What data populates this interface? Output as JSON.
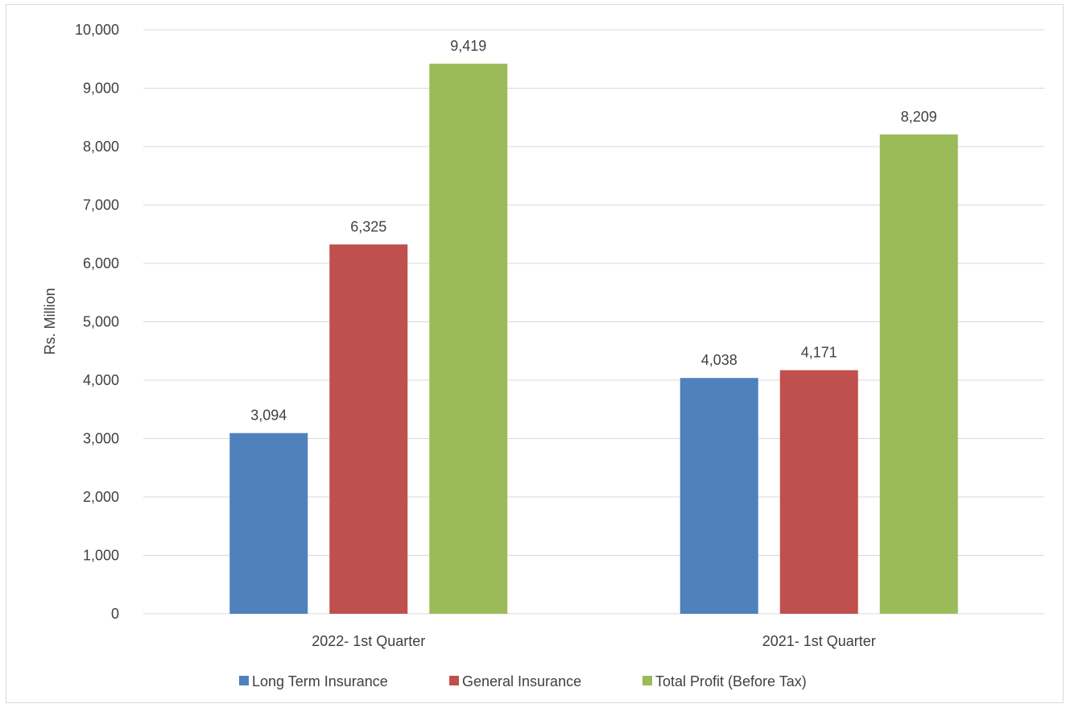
{
  "chart_data": {
    "type": "bar",
    "categories": [
      "2022- 1st Quarter",
      "2021- 1st  Quarter"
    ],
    "series": [
      {
        "name": "Long Term Insurance",
        "values": [
          3094,
          4038
        ],
        "color": "#4f81bd"
      },
      {
        "name": "General Insurance",
        "values": [
          6325,
          4171
        ],
        "color": "#c0504d"
      },
      {
        "name": "Total Profit (Before Tax)",
        "values": [
          9419,
          8209
        ],
        "color": "#9bbb59"
      }
    ],
    "data_labels": [
      [
        "3,094",
        "4,038"
      ],
      [
        "6,325",
        "4,171"
      ],
      [
        "9,419",
        "8,209"
      ]
    ],
    "ylabel": "Rs. Million",
    "xlabel": "",
    "ylim": [
      0,
      10000
    ],
    "yticks": [
      0,
      1000,
      2000,
      3000,
      4000,
      5000,
      6000,
      7000,
      8000,
      9000,
      10000
    ],
    "ytick_labels": [
      "0",
      "1,000",
      "2,000",
      "3,000",
      "4,000",
      "5,000",
      "6,000",
      "7,000",
      "8,000",
      "9,000",
      "10,000"
    ],
    "grid": true,
    "gridline_color": "#d9d9d9",
    "legend_position": "bottom"
  }
}
